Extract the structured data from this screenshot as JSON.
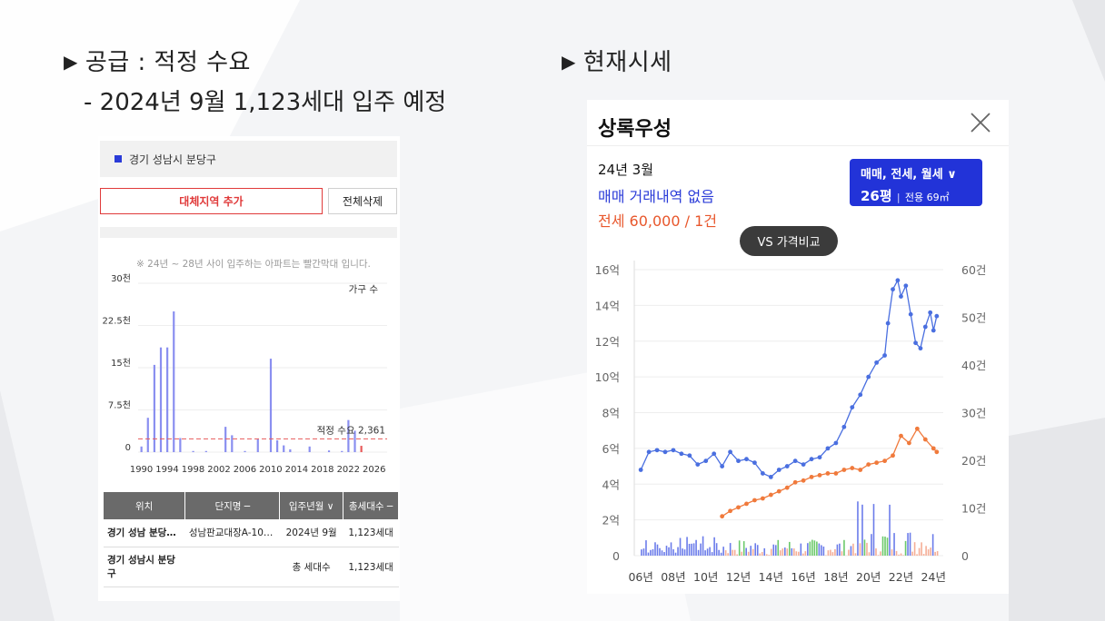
{
  "headings": {
    "supply": "공급 : 적정 수요",
    "supply_detail": "- 2024년 9월 1,123세대 입주 예정",
    "market": "현재시세"
  },
  "left_panel": {
    "region": "경기 성남시 분당구",
    "add_button": "대체지역 추가",
    "delete_button": "전체삭제",
    "note": "※ 24년 ~ 28년 사이 입주하는 아파트는 빨간막대 입니다.",
    "chart_data": {
      "type": "bar",
      "ylabel": "",
      "series_label": "가구 수",
      "ylim": [
        0,
        30000
      ],
      "y_ticks": [
        "30천",
        "22.5천",
        "15천",
        "7.5천",
        "0"
      ],
      "x_ticks": [
        "1990",
        "1994",
        "1998",
        "2002",
        "2006",
        "2010",
        "2014",
        "2018",
        "2022",
        "2026"
      ],
      "reference_line": {
        "label": "적정 수요 2,361",
        "value": 2361
      },
      "x": [
        1990,
        1991,
        1992,
        1993,
        1994,
        1995,
        1996,
        1997,
        1998,
        1999,
        2000,
        2001,
        2002,
        2003,
        2004,
        2005,
        2006,
        2007,
        2008,
        2009,
        2010,
        2011,
        2012,
        2013,
        2014,
        2015,
        2016,
        2017,
        2018,
        2019,
        2020,
        2021,
        2022,
        2023,
        2024
      ],
      "values": [
        1000,
        6100,
        15500,
        18600,
        18600,
        25000,
        2500,
        0,
        200,
        0,
        200,
        0,
        0,
        4500,
        3000,
        0,
        200,
        0,
        2300,
        0,
        16600,
        2100,
        1200,
        500,
        0,
        0,
        1000,
        0,
        0,
        300,
        0,
        200,
        5700,
        3800,
        1123
      ],
      "highlight_from": 2024
    },
    "table": {
      "headers": [
        "위치",
        "단지명 ─",
        "입주년월 ∨",
        "총세대수 ─"
      ],
      "rows": [
        [
          "경기 성남 분당…",
          "성남판교대장A-10…",
          "2024년 9월",
          "1,123세대"
        ],
        [
          "경기 성남시 분당구",
          "",
          "총 세대수",
          "1,123세대"
        ]
      ]
    }
  },
  "right_panel": {
    "title": "상록우성",
    "date": "24년 3월",
    "sale_status": "매매 거래내역 없음",
    "jeonse": "전세 60,000 / 1건",
    "dropdown_line1": "매매, 전세, 월세",
    "dropdown_size": "26평",
    "dropdown_area": "전용 69㎡",
    "compare_button": "VS 가격비교",
    "colors": {
      "sale": "#4a6fe0",
      "jeonse": "#f07a3c",
      "volume_sale": "#5b6ee8",
      "volume_jeonse": "#f4a58c",
      "volume_rent": "#5cc35b"
    },
    "chart_data": {
      "type": "line",
      "x_ticks": [
        "06년",
        "08년",
        "10년",
        "12년",
        "14년",
        "16년",
        "18년",
        "20년",
        "22년",
        "24년"
      ],
      "y_left_ticks": [
        "16억",
        "14억",
        "12억",
        "10억",
        "8억",
        "6억",
        "4억",
        "2억",
        "0"
      ],
      "y_right_ticks": [
        "60건",
        "50건",
        "40건",
        "30건",
        "20건",
        "10건",
        "0"
      ],
      "ylim_left": [
        0,
        16
      ],
      "ylim_right": [
        0,
        60
      ],
      "series": [
        {
          "name": "매매",
          "x": [
            2006.0,
            2006.5,
            2007.0,
            2007.5,
            2008.0,
            2008.5,
            2009.0,
            2009.5,
            2010.0,
            2010.5,
            2011.0,
            2011.5,
            2012.0,
            2012.5,
            2013.0,
            2013.5,
            2014.0,
            2014.5,
            2015.0,
            2015.5,
            2016.0,
            2016.5,
            2017.0,
            2017.5,
            2018.0,
            2018.5,
            2019.0,
            2019.5,
            2020.0,
            2020.5,
            2021.0,
            2021.2,
            2021.5,
            2021.8,
            2022.0,
            2022.3,
            2022.6,
            2022.9,
            2023.2,
            2023.5,
            2023.8,
            2024.0,
            2024.2
          ],
          "values": [
            4.8,
            5.8,
            5.9,
            5.8,
            5.9,
            5.7,
            5.6,
            5.1,
            5.3,
            5.7,
            5.0,
            5.8,
            5.3,
            5.4,
            5.2,
            4.6,
            4.4,
            4.8,
            5.0,
            5.3,
            5.1,
            5.4,
            5.5,
            6.0,
            6.3,
            7.2,
            8.3,
            9.0,
            10.0,
            10.8,
            11.2,
            13.0,
            14.9,
            15.4,
            14.5,
            15.1,
            13.5,
            11.9,
            11.6,
            12.8,
            13.6,
            12.6,
            13.4
          ]
        },
        {
          "name": "전세",
          "x": [
            2011.0,
            2011.5,
            2012.0,
            2012.5,
            2013.0,
            2013.5,
            2014.0,
            2014.5,
            2015.0,
            2015.5,
            2016.0,
            2016.5,
            2017.0,
            2017.5,
            2018.0,
            2018.5,
            2019.0,
            2019.5,
            2020.0,
            2020.5,
            2021.0,
            2021.5,
            2022.0,
            2022.5,
            2023.0,
            2023.5,
            2024.0,
            2024.2
          ],
          "values": [
            2.2,
            2.5,
            2.7,
            2.9,
            3.1,
            3.2,
            3.4,
            3.6,
            3.8,
            4.1,
            4.2,
            4.4,
            4.5,
            4.6,
            4.6,
            4.8,
            4.9,
            4.8,
            5.1,
            5.2,
            5.3,
            5.6,
            6.7,
            6.3,
            7.1,
            6.5,
            6.0,
            5.8
          ]
        }
      ]
    }
  }
}
